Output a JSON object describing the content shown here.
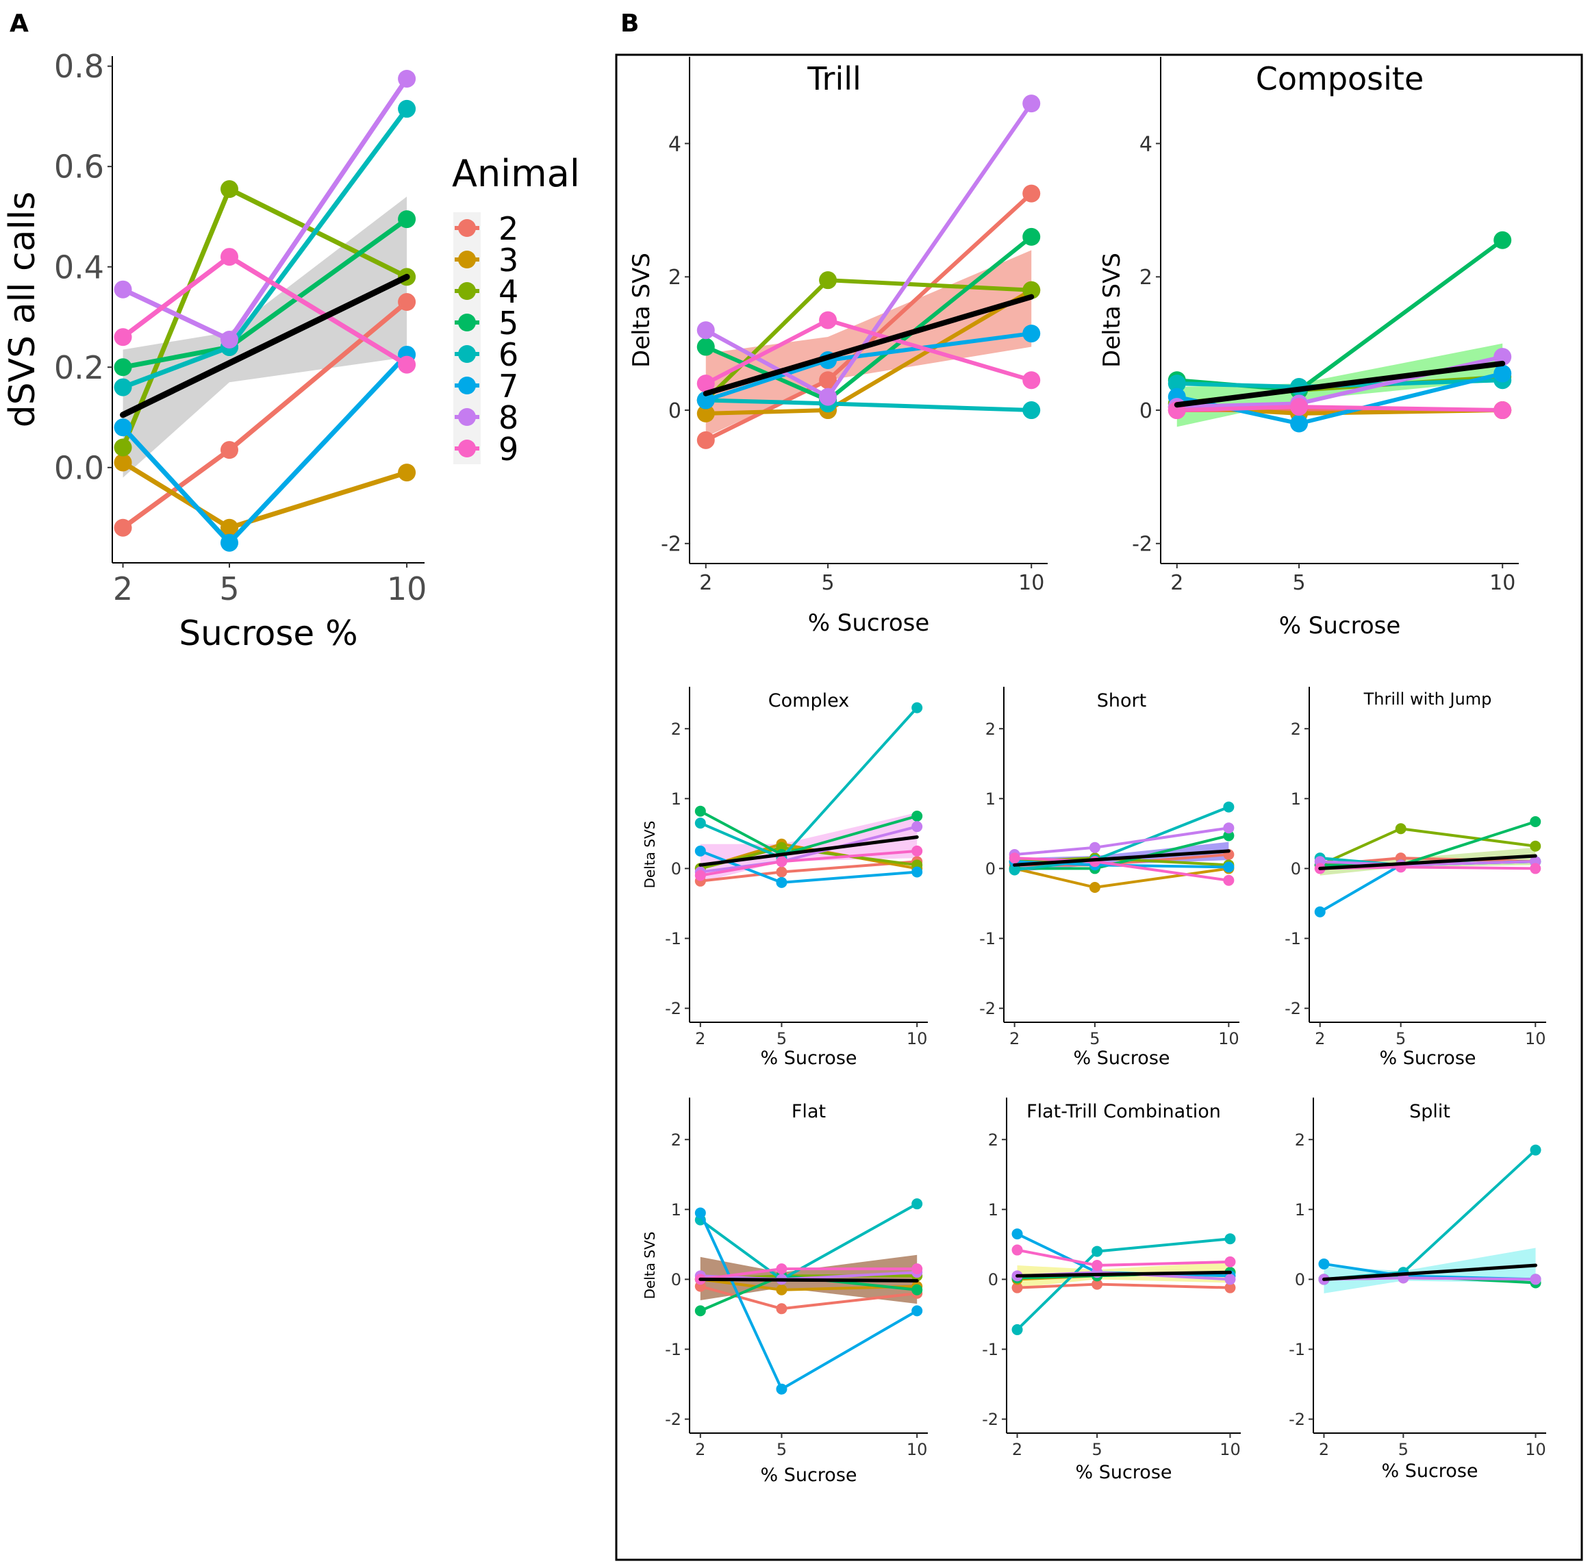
{
  "labels": {
    "panel_a": "A",
    "panel_b": "B"
  },
  "colors": {
    "2": "#F07467",
    "3": "#CC9500",
    "4": "#7FAE00",
    "5": "#00BB63",
    "6": "#00B9B9",
    "7": "#00A9E8",
    "8": "#C57CF0",
    "9": "#F963C6",
    "fit": "#000000",
    "band_a": "#BDBDBD"
  },
  "chart_data": [
    {
      "id": "A",
      "type": "line",
      "title": "",
      "xlabel": "Sucrose %",
      "ylabel": "dSVS all calls",
      "x": [
        2,
        5,
        10
      ],
      "xlim": [
        1.7,
        10.5
      ],
      "ylim": [
        -0.19,
        0.82
      ],
      "xticks": [
        "2",
        "5",
        "10"
      ],
      "yticks": [
        "0.0",
        "0.2",
        "0.4",
        "0.6",
        "0.8"
      ],
      "band_color": "#BDBDBD",
      "legend": {
        "title": "Animal",
        "entries": [
          "2",
          "3",
          "4",
          "5",
          "6",
          "7",
          "8",
          "9"
        ],
        "position": "right"
      },
      "series": [
        {
          "name": "2",
          "values": [
            -0.12,
            0.035,
            0.33
          ]
        },
        {
          "name": "3",
          "values": [
            0.01,
            -0.12,
            -0.01
          ]
        },
        {
          "name": "4",
          "values": [
            0.04,
            0.555,
            0.38
          ]
        },
        {
          "name": "5",
          "values": [
            0.2,
            0.24,
            0.495
          ]
        },
        {
          "name": "6",
          "values": [
            0.16,
            0.24,
            0.715
          ]
        },
        {
          "name": "7",
          "values": [
            0.08,
            -0.15,
            0.225
          ]
        },
        {
          "name": "8",
          "values": [
            0.355,
            0.255,
            0.775
          ]
        },
        {
          "name": "9",
          "values": [
            0.26,
            0.42,
            0.205
          ]
        }
      ],
      "fit": {
        "start": 0.105,
        "end": 0.38
      },
      "band": {
        "lower_start": -0.02,
        "upper_start": 0.235,
        "lower_mid": 0.17,
        "upper_mid": 0.27,
        "lower_end": 0.22,
        "upper_end": 0.54
      }
    },
    {
      "id": "trill",
      "type": "line",
      "title": "Trill",
      "xlabel": "% Sucrose",
      "ylabel": "Delta SVS",
      "x": [
        2,
        5,
        10
      ],
      "xlim": [
        1.6,
        10.4
      ],
      "ylim": [
        -2.3,
        5.3
      ],
      "xticks": [
        "2",
        "5",
        "10"
      ],
      "yticks": [
        "-2",
        "0",
        "2",
        "4"
      ],
      "band_color": "#F08070",
      "series": [
        {
          "name": "2",
          "values": [
            -0.45,
            0.45,
            3.25
          ]
        },
        {
          "name": "3",
          "values": [
            -0.05,
            0.0,
            1.8
          ]
        },
        {
          "name": "4",
          "values": [
            0.15,
            1.95,
            1.8
          ]
        },
        {
          "name": "5",
          "values": [
            0.95,
            0.15,
            2.6
          ]
        },
        {
          "name": "6",
          "values": [
            0.15,
            0.1,
            0.0
          ]
        },
        {
          "name": "7",
          "values": [
            0.15,
            0.75,
            1.15
          ]
        },
        {
          "name": "8",
          "values": [
            1.2,
            0.2,
            4.6
          ]
        },
        {
          "name": "9",
          "values": [
            0.4,
            1.35,
            0.45
          ]
        }
      ],
      "fit": {
        "start": 0.25,
        "end": 1.7
      },
      "band": {
        "lower_start": -0.4,
        "upper_start": 0.85,
        "lower_mid": 0.45,
        "upper_mid": 1.1,
        "lower_end": 0.95,
        "upper_end": 2.4
      }
    },
    {
      "id": "composite",
      "type": "line",
      "title": "Composite",
      "xlabel": "% Sucrose",
      "ylabel": "Delta SVS",
      "x": [
        2,
        5,
        10
      ],
      "xlim": [
        1.6,
        10.4
      ],
      "ylim": [
        -2.3,
        5.3
      ],
      "xticks": [
        "2",
        "5",
        "10"
      ],
      "yticks": [
        "-2",
        "0",
        "2",
        "4"
      ],
      "band_color": "#5EF05E",
      "series": [
        {
          "name": "2",
          "values": [
            0.0,
            0.0,
            0.0
          ]
        },
        {
          "name": "3",
          "values": [
            0.05,
            -0.05,
            0.0
          ]
        },
        {
          "name": "4",
          "values": [
            0.1,
            0.3,
            0.5
          ]
        },
        {
          "name": "5",
          "values": [
            0.45,
            0.3,
            2.55
          ]
        },
        {
          "name": "6",
          "values": [
            0.4,
            0.35,
            0.45
          ]
        },
        {
          "name": "7",
          "values": [
            0.2,
            -0.2,
            0.55
          ]
        },
        {
          "name": "8",
          "values": [
            0.05,
            0.1,
            0.8
          ]
        },
        {
          "name": "9",
          "values": [
            0.0,
            0.05,
            0.0
          ]
        }
      ],
      "fit": {
        "start": 0.08,
        "end": 0.7
      },
      "band": {
        "lower_start": -0.25,
        "upper_start": 0.35,
        "lower_mid": 0.15,
        "upper_mid": 0.4,
        "lower_end": 0.45,
        "upper_end": 1.0
      }
    },
    {
      "id": "complex",
      "type": "line",
      "title": "Complex",
      "xlabel": "% Sucrose",
      "ylabel": "Delta SVS",
      "x": [
        2,
        5,
        10
      ],
      "xlim": [
        1.6,
        10.4
      ],
      "ylim": [
        -2.2,
        2.6
      ],
      "xticks": [
        "2",
        "5",
        "10"
      ],
      "yticks": [
        "-2",
        "-1",
        "0",
        "1",
        "2"
      ],
      "band_color": "#F7A8F0",
      "series": [
        {
          "name": "2",
          "values": [
            -0.18,
            -0.05,
            0.1
          ]
        },
        {
          "name": "3",
          "values": [
            0.0,
            0.35,
            0.0
          ]
        },
        {
          "name": "4",
          "values": [
            0.0,
            0.3,
            0.05
          ]
        },
        {
          "name": "5",
          "values": [
            0.82,
            0.2,
            0.75
          ]
        },
        {
          "name": "6",
          "values": [
            0.65,
            0.15,
            2.3
          ]
        },
        {
          "name": "7",
          "values": [
            0.25,
            -0.2,
            -0.05
          ]
        },
        {
          "name": "8",
          "values": [
            -0.05,
            0.1,
            0.6
          ]
        },
        {
          "name": "9",
          "values": [
            -0.1,
            0.1,
            0.25
          ]
        }
      ],
      "fit": {
        "start": 0.05,
        "end": 0.45
      },
      "band": {
        "lower_start": -0.2,
        "upper_start": 0.35,
        "lower_mid": 0.1,
        "upper_mid": 0.35,
        "lower_end": 0.15,
        "upper_end": 0.8
      }
    },
    {
      "id": "short",
      "type": "line",
      "title": "Short",
      "xlabel": "% Sucrose",
      "ylabel": "",
      "x": [
        2,
        5,
        10
      ],
      "xlim": [
        1.6,
        10.4
      ],
      "ylim": [
        -2.2,
        2.6
      ],
      "xticks": [
        "2",
        "5",
        "10"
      ],
      "yticks": [
        "-2",
        "-1",
        "0",
        "1",
        "2"
      ],
      "band_color": "#6E5CF0",
      "series": [
        {
          "name": "2",
          "values": [
            0.05,
            0.05,
            0.2
          ]
        },
        {
          "name": "3",
          "values": [
            0.0,
            -0.27,
            0.0
          ]
        },
        {
          "name": "4",
          "values": [
            0.1,
            0.15,
            0.05
          ]
        },
        {
          "name": "5",
          "values": [
            0.0,
            0.0,
            0.47
          ]
        },
        {
          "name": "6",
          "values": [
            -0.02,
            0.12,
            0.88
          ]
        },
        {
          "name": "7",
          "values": [
            0.1,
            0.05,
            0.02
          ]
        },
        {
          "name": "8",
          "values": [
            0.2,
            0.3,
            0.58
          ]
        },
        {
          "name": "9",
          "values": [
            0.15,
            0.1,
            -0.17
          ]
        }
      ],
      "fit": {
        "start": 0.05,
        "end": 0.25
      },
      "band": {
        "lower_start": -0.05,
        "upper_start": 0.15,
        "lower_mid": 0.05,
        "upper_mid": 0.18,
        "lower_end": 0.12,
        "upper_end": 0.38
      }
    },
    {
      "id": "thrill_jump",
      "type": "line",
      "title": "Thrill with Jump",
      "xlabel": "% Sucrose",
      "ylabel": "",
      "x": [
        2,
        5,
        10
      ],
      "xlim": [
        1.6,
        10.4
      ],
      "ylim": [
        -2.2,
        2.6
      ],
      "xticks": [
        "2",
        "5",
        "10"
      ],
      "yticks": [
        "-2",
        "-1",
        "0",
        "1",
        "2"
      ],
      "band_color": "#B9E07A",
      "series": [
        {
          "name": "2",
          "values": [
            0.05,
            0.15,
            0.1
          ]
        },
        {
          "name": "4",
          "values": [
            0.05,
            0.57,
            0.32
          ]
        },
        {
          "name": "5",
          "values": [
            0.05,
            0.05,
            0.67
          ]
        },
        {
          "name": "6",
          "values": [
            0.15,
            0.05,
            0.1
          ]
        },
        {
          "name": "7",
          "values": [
            -0.62,
            0.05,
            0.1
          ]
        },
        {
          "name": "8",
          "values": [
            0.1,
            0.05,
            0.1
          ]
        },
        {
          "name": "9",
          "values": [
            0.0,
            0.02,
            0.0
          ]
        }
      ],
      "fit": {
        "start": 0.0,
        "end": 0.18
      },
      "band": {
        "lower_start": -0.1,
        "upper_start": 0.1,
        "lower_mid": 0.02,
        "upper_mid": 0.14,
        "lower_end": 0.05,
        "upper_end": 0.3
      }
    },
    {
      "id": "flat",
      "type": "line",
      "title": "Flat",
      "xlabel": "% Sucrose",
      "ylabel": "Delta SVS",
      "x": [
        2,
        5,
        10
      ],
      "xlim": [
        1.6,
        10.4
      ],
      "ylim": [
        -2.2,
        2.6
      ],
      "xticks": [
        "2",
        "5",
        "10"
      ],
      "yticks": [
        "-2",
        "-1",
        "0",
        "1",
        "2"
      ],
      "band_color": "#8C4A1E",
      "series": [
        {
          "name": "2",
          "values": [
            -0.1,
            -0.42,
            -0.2
          ]
        },
        {
          "name": "3",
          "values": [
            0.0,
            -0.15,
            -0.1
          ]
        },
        {
          "name": "4",
          "values": [
            0.0,
            0.05,
            0.05
          ]
        },
        {
          "name": "5",
          "values": [
            -0.45,
            0.05,
            -0.15
          ]
        },
        {
          "name": "6",
          "values": [
            0.85,
            0.0,
            1.08
          ]
        },
        {
          "name": "7",
          "values": [
            0.95,
            -1.57,
            -0.45
          ]
        },
        {
          "name": "8",
          "values": [
            0.05,
            0.0,
            0.1
          ]
        },
        {
          "name": "9",
          "values": [
            0.0,
            0.15,
            0.15
          ]
        }
      ],
      "fit": {
        "start": 0.0,
        "end": -0.02
      },
      "band": {
        "lower_start": -0.3,
        "upper_start": 0.32,
        "lower_mid": -0.12,
        "upper_mid": 0.1,
        "lower_end": -0.35,
        "upper_end": 0.35
      }
    },
    {
      "id": "flat_trill",
      "type": "line",
      "title": "Flat-Trill Combination",
      "xlabel": "% Sucrose",
      "ylabel": "",
      "x": [
        2,
        5,
        10
      ],
      "xlim": [
        1.6,
        10.4
      ],
      "ylim": [
        -2.2,
        2.6
      ],
      "xticks": [
        "2",
        "5",
        "10"
      ],
      "yticks": [
        "-2",
        "-1",
        "0",
        "1",
        "2"
      ],
      "band_color": "#F2F06A",
      "series": [
        {
          "name": "2",
          "values": [
            -0.12,
            -0.07,
            -0.12
          ]
        },
        {
          "name": "3",
          "values": [
            0.0,
            0.05,
            0.1
          ]
        },
        {
          "name": "5",
          "values": [
            0.02,
            0.05,
            0.1
          ]
        },
        {
          "name": "6",
          "values": [
            -0.72,
            0.4,
            0.58
          ]
        },
        {
          "name": "7",
          "values": [
            0.65,
            0.1,
            0.05
          ]
        },
        {
          "name": "8",
          "values": [
            0.05,
            0.1,
            0.0
          ]
        },
        {
          "name": "9",
          "values": [
            0.42,
            0.2,
            0.25
          ]
        }
      ],
      "fit": {
        "start": 0.05,
        "end": 0.1
      },
      "band": {
        "lower_start": -0.12,
        "upper_start": 0.2,
        "lower_mid": 0.0,
        "upper_mid": 0.14,
        "lower_end": -0.05,
        "upper_end": 0.25
      }
    },
    {
      "id": "split",
      "type": "line",
      "title": "Split",
      "xlabel": "% Sucrose",
      "ylabel": "",
      "x": [
        2,
        5,
        10
      ],
      "xlim": [
        1.6,
        10.4
      ],
      "ylim": [
        -2.2,
        2.6
      ],
      "xticks": [
        "2",
        "5",
        "10"
      ],
      "yticks": [
        "-2",
        "-1",
        "0",
        "1",
        "2"
      ],
      "band_color": "#7CF0F0",
      "series": [
        {
          "name": "2",
          "values": [
            0.0,
            0.02,
            0.0
          ]
        },
        {
          "name": "5",
          "values": [
            0.0,
            0.05,
            -0.05
          ]
        },
        {
          "name": "6",
          "values": [
            0.0,
            0.1,
            1.85
          ]
        },
        {
          "name": "7",
          "values": [
            0.22,
            0.05,
            0.0
          ]
        },
        {
          "name": "8",
          "values": [
            0.0,
            0.02,
            0.0
          ]
        }
      ],
      "fit": {
        "start": 0.0,
        "end": 0.2
      },
      "band": {
        "lower_start": -0.2,
        "upper_start": 0.18,
        "lower_mid": -0.02,
        "upper_mid": 0.12,
        "lower_end": -0.05,
        "upper_end": 0.45
      }
    }
  ]
}
